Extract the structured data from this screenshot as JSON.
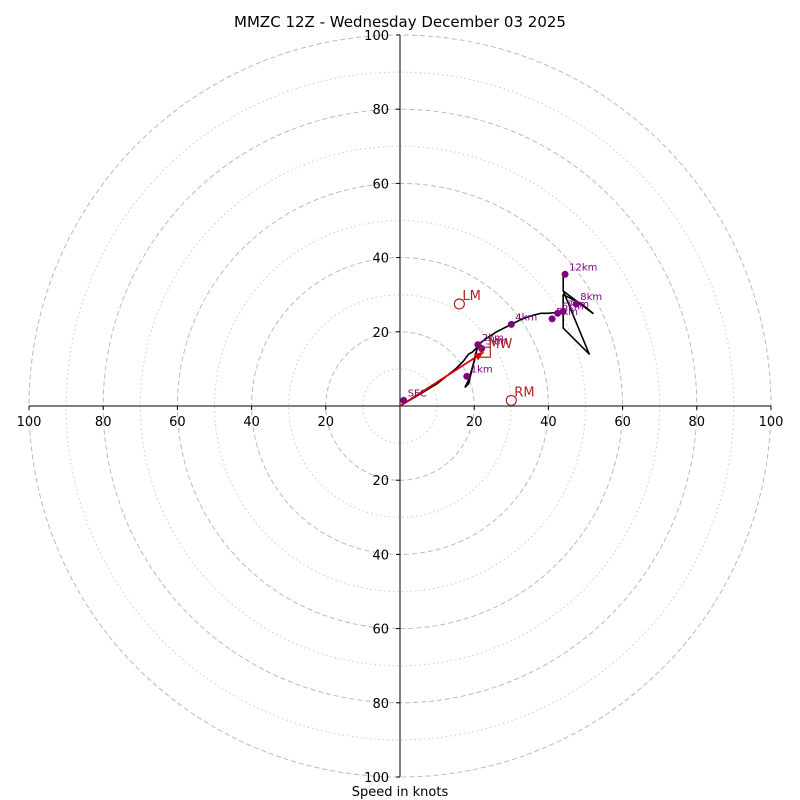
{
  "chart_data": {
    "type": "hodograph",
    "title": "MMZC 12Z - Wednesday December 03 2025",
    "xlabel": "Speed in knots",
    "units": "knots",
    "range": [
      -100,
      100
    ],
    "x_ticks": [
      {
        "value": -100,
        "label": "100"
      },
      {
        "value": -80,
        "label": "80"
      },
      {
        "value": -60,
        "label": "60"
      },
      {
        "value": -40,
        "label": "40"
      },
      {
        "value": -20,
        "label": "20"
      },
      {
        "value": 20,
        "label": "20"
      },
      {
        "value": 40,
        "label": "40"
      },
      {
        "value": 60,
        "label": "60"
      },
      {
        "value": 80,
        "label": "80"
      },
      {
        "value": 100,
        "label": "100"
      }
    ],
    "y_ticks": [
      {
        "value": 100,
        "label": "100"
      },
      {
        "value": 80,
        "label": "80"
      },
      {
        "value": 60,
        "label": "60"
      },
      {
        "value": 40,
        "label": "40"
      },
      {
        "value": 20,
        "label": "20"
      },
      {
        "value": -20,
        "label": "20"
      },
      {
        "value": -40,
        "label": "40"
      },
      {
        "value": -60,
        "label": "60"
      },
      {
        "value": -80,
        "label": "80"
      },
      {
        "value": -100,
        "label": "100"
      }
    ],
    "rings_major": [
      20,
      40,
      60,
      80,
      100
    ],
    "rings_minor": [
      10,
      30,
      50,
      70,
      90
    ],
    "trace": [
      [
        0,
        0
      ],
      [
        5,
        3
      ],
      [
        10,
        6
      ],
      [
        15,
        10
      ],
      [
        17,
        12
      ],
      [
        18.5,
        14
      ],
      [
        19.5,
        14.5
      ],
      [
        21,
        16
      ],
      [
        21,
        16.5
      ],
      [
        23,
        18
      ],
      [
        26,
        20
      ],
      [
        30,
        22
      ],
      [
        33,
        23.5
      ],
      [
        36,
        24.5
      ],
      [
        38,
        25
      ],
      [
        40,
        25
      ],
      [
        42,
        25.2
      ],
      [
        44,
        25.5
      ],
      [
        44,
        30
      ],
      [
        46,
        29
      ],
      [
        49,
        27.5
      ],
      [
        52,
        25
      ],
      [
        44,
        31
      ],
      [
        44,
        36
      ]
    ],
    "trace_extra": [
      [
        [
          21,
          16.5
        ],
        [
          20,
          12
        ],
        [
          18.5,
          7
        ],
        [
          17.5,
          5
        ]
      ],
      [
        [
          21,
          16.5
        ],
        [
          18.5,
          6
        ],
        [
          17.5,
          5
        ]
      ],
      [
        [
          44,
          30
        ],
        [
          44,
          21
        ],
        [
          51,
          14
        ],
        [
          44,
          31
        ]
      ]
    ],
    "height_points": [
      {
        "label": "SFC",
        "u": 1,
        "v": 1.5
      },
      {
        "label": "1km",
        "u": 18,
        "v": 8
      },
      {
        "label": "2km",
        "u": 21,
        "v": 16.5
      },
      {
        "label": "3km",
        "u": 22,
        "v": 15.5
      },
      {
        "label": "4km",
        "u": 30,
        "v": 22
      },
      {
        "label": "5km",
        "u": 41,
        "v": 23.5
      },
      {
        "label": "6km",
        "u": 42.5,
        "v": 25
      },
      {
        "label": "7km",
        "u": 44,
        "v": 25.5
      },
      {
        "label": "8km",
        "u": 47.5,
        "v": 27.5
      },
      {
        "label": "12km",
        "u": 44.5,
        "v": 35.5
      }
    ],
    "motion_markers": [
      {
        "label": "LM",
        "u": 16,
        "v": 27.5,
        "marker": "circle"
      },
      {
        "label": "RM",
        "u": 30,
        "v": 1.5,
        "marker": "circle"
      },
      {
        "label": "MW",
        "u": 23,
        "v": 14.5,
        "marker": "square"
      }
    ],
    "mean_wind_vector": {
      "u": 22.5,
      "v": 14.5
    },
    "colors": {
      "trace": "#000000",
      "height_points": "#800080",
      "markers": "#b22222",
      "vector": "#e00000",
      "grid": "#bbbbbb"
    }
  }
}
